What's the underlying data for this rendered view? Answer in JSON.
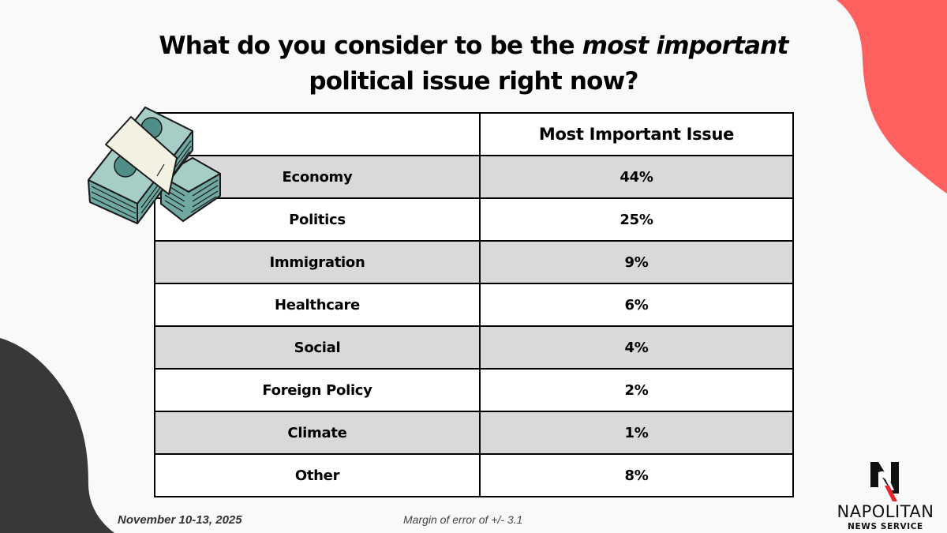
{
  "title": {
    "line1_before": "What do you consider to be the ",
    "line1_emphasis": "most important",
    "line2": "political issue right now?"
  },
  "colors": {
    "accent_red": "#fe6060",
    "dark_blob": "#383838",
    "row_shaded": "#d9d9d9",
    "row_plain": "#ffffff",
    "money_green": "#6fa9a2"
  },
  "footer": {
    "date": "November 10-13, 2025",
    "margin_of_error": "Margin of error of +/- 3.1"
  },
  "logo": {
    "name": "NAPOLITAN",
    "subtitle": "NEWS SERVICE",
    "mark": "N"
  },
  "chart_data": {
    "type": "table",
    "title": "What do you consider to be the most important political issue right now?",
    "columns": [
      "",
      "Most Important Issue"
    ],
    "categories": [
      "Economy",
      "Politics",
      "Immigration",
      "Healthcare",
      "Social",
      "Foreign Policy",
      "Climate",
      "Other"
    ],
    "values": [
      44,
      25,
      9,
      6,
      4,
      2,
      1,
      8
    ],
    "value_labels": [
      "44%",
      "25%",
      "9%",
      "6%",
      "4%",
      "2%",
      "1%",
      "8%"
    ],
    "unit": "%"
  }
}
